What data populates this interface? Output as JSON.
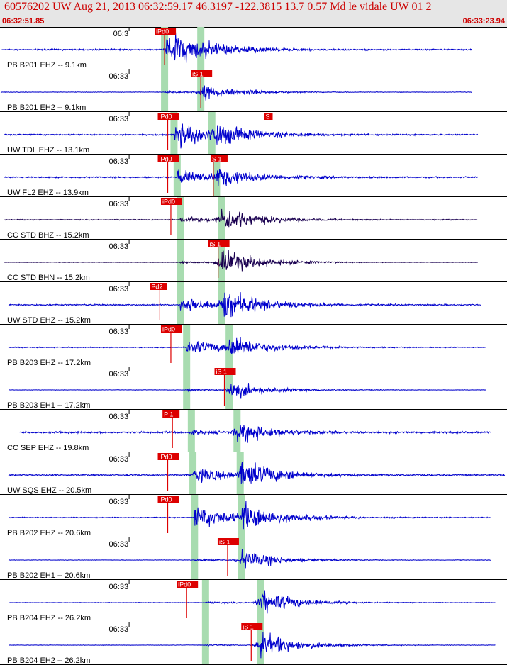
{
  "header": {
    "title": "60576202 UW Aug 21, 2013 06:32:59.17    46.3197 -122.3815 13.7 0.57 Md le vidale UW 01   2",
    "start_time": "06:32:51.85",
    "end_time": "06:33:23.94"
  },
  "chart_data": {
    "type": "line",
    "title": "60576202 UW Aug 21, 2013 06:32:59.17    46.3197 -122.3815 13.7 0.57 Md le vidale UW 01   2",
    "x_range": [
      "06:32:51.85",
      "06:33:23.94"
    ],
    "x_range_seconds": [
      0,
      32.09
    ],
    "minute_tick_label": "06:33",
    "minute_tick_seconds": 8.15,
    "colors": {
      "trace": "#0000cc",
      "trace_cc": "#1a0050",
      "pick": "#dd0000",
      "window": "#a8dcb0"
    },
    "traces": [
      {
        "label": "PB B201 EHZ -- 9.1km",
        "channel": "Z",
        "color": "trace",
        "tick": "06:3",
        "trace_start": 0.0,
        "trace_end": 29.9,
        "p": 10.4,
        "s": 12.7,
        "pick": {
          "label": "iPd0",
          "time": 10.4
        },
        "amp": [
          0.03,
          0.85,
          0.35
        ]
      },
      {
        "label": "PB B201 EH2 -- 9.1km",
        "channel": "H",
        "color": "trace",
        "tick": "06:33",
        "trace_start": 0.0,
        "trace_end": 29.9,
        "p": 10.4,
        "s": 12.7,
        "pick": {
          "label": "iS 1",
          "time": 12.7
        },
        "amp": [
          0.01,
          0.05,
          0.35
        ]
      },
      {
        "label": "UW TDL EHZ -- 13.1km",
        "channel": "Z",
        "color": "trace",
        "tick": "06:33",
        "trace_start": 0.2,
        "trace_end": 30.3,
        "p": 11.0,
        "s": 13.4,
        "pick": {
          "label": "iPd0",
          "time": 10.6
        },
        "pick2": {
          "label": "S",
          "time": 16.9
        },
        "amp": [
          0.03,
          0.6,
          0.6
        ]
      },
      {
        "label": "UW FL2 EHZ -- 13.9km",
        "channel": "Z",
        "color": "trace",
        "tick": "06:33",
        "trace_start": 0.2,
        "trace_end": 30.3,
        "p": 11.2,
        "s": 13.7,
        "pick": {
          "label": "iPd0",
          "time": 10.6
        },
        "pick2": {
          "label": "S 1",
          "time": 13.5
        },
        "amp": [
          0.03,
          0.35,
          0.5
        ]
      },
      {
        "label": "CC STD BHZ -- 15.2km",
        "channel": "Z",
        "color": "trace_cc",
        "tick": "06:33",
        "trace_start": 0.2,
        "trace_end": 30.3,
        "p": 11.4,
        "s": 14.0,
        "pick": {
          "label": "iPd0",
          "time": 10.8
        },
        "amp": [
          0.02,
          0.15,
          0.55
        ]
      },
      {
        "label": "CC STD BHN -- 15.2km",
        "channel": "H",
        "color": "trace_cc",
        "tick": "06:33",
        "trace_start": 0.2,
        "trace_end": 30.3,
        "p": 11.4,
        "s": 14.0,
        "pick": {
          "label": "iS 1",
          "time": 13.8
        },
        "amp": [
          0.01,
          0.05,
          0.6
        ]
      },
      {
        "label": "UW STD EHZ -- 15.2km",
        "channel": "Z",
        "color": "trace",
        "tick": "06:33",
        "trace_start": 0.5,
        "trace_end": 30.5,
        "p": 11.4,
        "s": 14.0,
        "pick": {
          "label": "Pd2",
          "time": 10.1
        },
        "amp": [
          0.03,
          0.35,
          0.75
        ]
      },
      {
        "label": "PB B203 EHZ -- 17.2km",
        "channel": "Z",
        "color": "trace",
        "tick": "06:33",
        "trace_start": 0.5,
        "trace_end": 30.8,
        "p": 11.8,
        "s": 14.5,
        "pick": {
          "label": "iPd0",
          "time": 10.8
        },
        "amp": [
          0.02,
          0.35,
          0.55
        ]
      },
      {
        "label": "PB B203 EH1 -- 17.2km",
        "channel": "H",
        "color": "trace",
        "tick": "06:33",
        "trace_start": 0.5,
        "trace_end": 30.8,
        "p": 11.8,
        "s": 14.5,
        "pick": {
          "label": "iS 1",
          "time": 14.2
        },
        "amp": [
          0.01,
          0.05,
          0.4
        ]
      },
      {
        "label": "CC SEP EHZ -- 19.8km",
        "channel": "Z",
        "color": "trace",
        "tick": "06:33",
        "trace_start": 1.2,
        "trace_end": 31.1,
        "p": 12.1,
        "s": 15.0,
        "pick": {
          "label": "P 1",
          "time": 10.9
        },
        "amp": [
          0.04,
          0.12,
          0.45
        ]
      },
      {
        "label": "UW SQS EHZ -- 20.5km",
        "channel": "Z",
        "color": "trace",
        "tick": "06:33",
        "trace_start": 0.5,
        "trace_end": 32.0,
        "p": 12.2,
        "s": 15.2,
        "pick": {
          "label": "iPd0",
          "time": 10.6
        },
        "amp": [
          0.03,
          0.35,
          0.7
        ]
      },
      {
        "label": "PB B202 EHZ -- 20.6km",
        "channel": "Z",
        "color": "trace",
        "tick": "06:33",
        "trace_start": 0.5,
        "trace_end": 31.1,
        "p": 12.3,
        "s": 15.3,
        "pick": {
          "label": "iPd0",
          "time": 10.6
        },
        "amp": [
          0.02,
          0.5,
          0.7
        ]
      },
      {
        "label": "PB B202 EH1 -- 20.6km",
        "channel": "H",
        "color": "trace",
        "tick": "06:33",
        "trace_start": 0.5,
        "trace_end": 31.1,
        "p": 12.3,
        "s": 15.3,
        "pick": {
          "label": "iS 1",
          "time": 14.4
        },
        "amp": [
          0.01,
          0.05,
          0.45
        ]
      },
      {
        "label": "PB B204 EHZ -- 26.2km",
        "channel": "Z",
        "color": "trace",
        "tick": "06:33",
        "trace_start": 0.5,
        "trace_end": 31.4,
        "p": 13.0,
        "s": 16.5,
        "pick": {
          "label": "iPd0",
          "time": 11.8
        },
        "amp": [
          0.01,
          0.05,
          0.55
        ]
      },
      {
        "label": "PB B204 EH2 -- 26.2km",
        "channel": "H",
        "color": "trace",
        "tick": "06:33",
        "trace_start": 0.5,
        "trace_end": 31.4,
        "p": 13.0,
        "s": 16.5,
        "pick": {
          "label": "iS 1",
          "time": 15.9
        },
        "amp": [
          0.01,
          0.04,
          0.55
        ]
      }
    ]
  }
}
